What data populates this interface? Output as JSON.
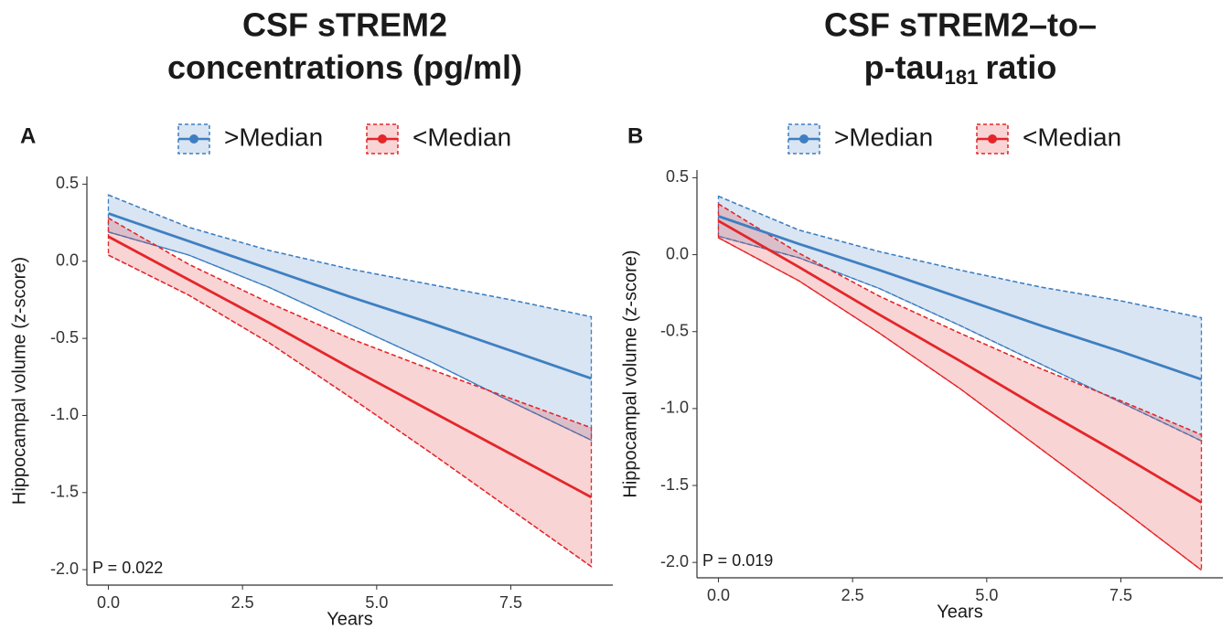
{
  "chart_data": [
    {
      "type": "line",
      "panel": "A",
      "title": [
        "CSF sTREM2",
        "concentrations (pg/ml)"
      ],
      "x_label": "Years",
      "y_label": "Hippocampal volume (z-score)",
      "annotation": "P = 0.022",
      "x": [
        0,
        1.5,
        3,
        4.5,
        6,
        7.5,
        9
      ],
      "series": [
        {
          "name": ">Median",
          "color": "#3f7fc1",
          "values": [
            0.31,
            0.13,
            -0.05,
            -0.23,
            -0.4,
            -0.58,
            -0.76
          ],
          "upper": [
            0.43,
            0.22,
            0.07,
            -0.05,
            -0.15,
            -0.25,
            -0.36
          ],
          "lower": [
            0.19,
            0.04,
            -0.17,
            -0.41,
            -0.65,
            -0.91,
            -1.16
          ]
        },
        {
          "name": "<Median",
          "color": "#e3262a",
          "values": [
            0.16,
            -0.12,
            -0.4,
            -0.69,
            -0.97,
            -1.25,
            -1.53
          ],
          "upper": [
            0.28,
            -0.02,
            -0.27,
            -0.5,
            -0.7,
            -0.89,
            -1.08
          ],
          "lower": [
            0.04,
            -0.22,
            -0.53,
            -0.88,
            -1.24,
            -1.61,
            -1.98
          ]
        }
      ],
      "xlim": [
        -0.4,
        9.4
      ],
      "ylim": [
        -2.1,
        0.55
      ],
      "xticks": [
        {
          "value": 0,
          "label": "0.0"
        },
        2.5,
        {
          "value": 5,
          "label": "5.0"
        },
        7.5
      ],
      "yticks": [
        0.5,
        {
          "value": 0,
          "label": "0.0"
        },
        -0.5,
        {
          "value": -1,
          "label": "-1.0"
        },
        -1.5,
        {
          "value": -2,
          "label": "-2.0"
        }
      ]
    },
    {
      "type": "line",
      "panel": "B",
      "title": [
        "CSF sTREM2–to–",
        "p-tau"
      ],
      "title_subscript": "181",
      "title_end": "ratio",
      "x_label": "Years",
      "y_label": "Hippocampal volume (z-score)",
      "annotation": "P = 0.019",
      "x": [
        0,
        1.5,
        3,
        4.5,
        6,
        7.5,
        9
      ],
      "series": [
        {
          "name": ">Median",
          "color": "#3f7fc1",
          "values": [
            0.25,
            0.07,
            -0.1,
            -0.28,
            -0.46,
            -0.63,
            -0.81
          ],
          "upper": [
            0.38,
            0.16,
            0.02,
            -0.1,
            -0.21,
            -0.3,
            -0.41
          ],
          "lower": [
            0.12,
            -0.02,
            -0.22,
            -0.46,
            -0.71,
            -0.96,
            -1.21
          ]
        },
        {
          "name": "<Median",
          "color": "#e3262a",
          "values": [
            0.22,
            -0.08,
            -0.39,
            -0.69,
            -1.0,
            -1.3,
            -1.61
          ],
          "upper": [
            0.33,
            0.01,
            -0.27,
            -0.51,
            -0.74,
            -0.95,
            -1.17
          ],
          "lower": [
            0.11,
            -0.17,
            -0.51,
            -0.87,
            -1.26,
            -1.65,
            -2.05
          ]
        }
      ],
      "xlim": [
        -0.4,
        9.4
      ],
      "ylim": [
        -2.1,
        0.55
      ],
      "xticks": [
        {
          "value": 0,
          "label": "0.0"
        },
        2.5,
        {
          "value": 5,
          "label": "5.0"
        },
        7.5
      ],
      "yticks": [
        0.5,
        {
          "value": 0,
          "label": "0.0"
        },
        -0.5,
        {
          "value": -1,
          "label": "-1.0"
        },
        -1.5,
        {
          "value": -2,
          "label": "-2.0"
        }
      ]
    }
  ]
}
